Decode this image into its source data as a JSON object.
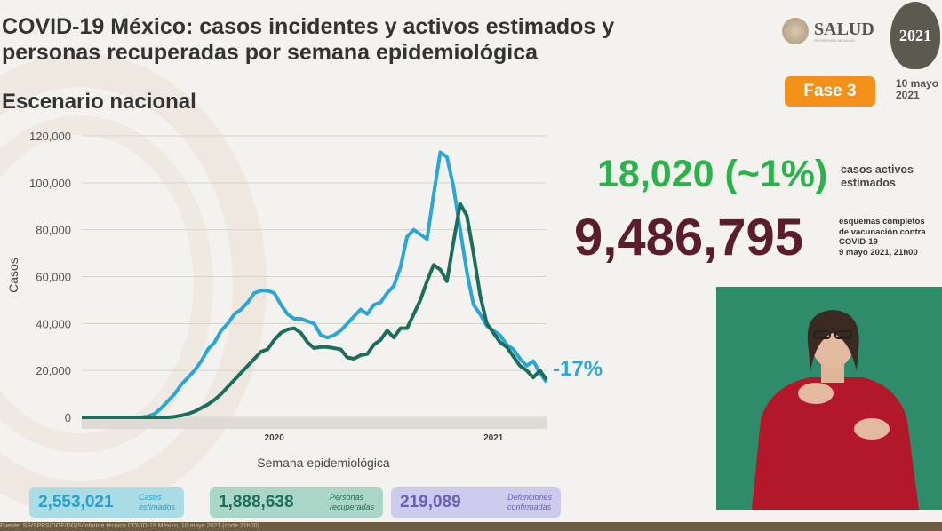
{
  "header": {
    "title_line1": "COVID-19 México: casos incidentes y activos estimados y",
    "title_line2": "personas recuperadas por semana epidemiológica",
    "subtitle": "Escenario nacional",
    "logo_salud": "SALUD",
    "logo_salud_sub": "SECRETARÍA DE SALUD",
    "seal_text": "2021",
    "phase_badge": "Fase 3",
    "date_line1": "10 mayo",
    "date_line2": "2021"
  },
  "kpis": {
    "active_value": "18,020 (~1%)",
    "active_label_1": "casos activos",
    "active_label_2": "estimados",
    "vaccine_value": "9,486,795",
    "vaccine_label_1": "esquemas completos",
    "vaccine_label_2": "de vacunación contra",
    "vaccine_label_3": "COVID-19",
    "vaccine_label_4": "9 mayo 2021, 21h00"
  },
  "stats": [
    {
      "value": "2,553,021",
      "label_1": "Casos",
      "label_2": "estimados",
      "color": "#2aa0c8",
      "bg": "#a9dce4"
    },
    {
      "value": "1,888,638",
      "label_1": "Personas",
      "label_2": "recuperadas",
      "color": "#1f6e5a",
      "bg": "#a9d6c6"
    },
    {
      "value": "219,089",
      "label_1": "Defunciones",
      "label_2": "confirmadas",
      "color": "#6a5fb5",
      "bg": "#cccbee"
    }
  ],
  "footer": "Fuente: SS/SPPS/DGE/DGIS/Informe técnico COVID-19 México, 10 mayo 2021 (corte 21h00)",
  "chart_data": {
    "type": "line",
    "title": "",
    "xlabel": "Semana epidemiológica",
    "ylabel": "Casos",
    "ylim": [
      0,
      120000
    ],
    "yticks": [
      "0",
      "20,000",
      "40,000",
      "60,000",
      "80,000",
      "100,000",
      "120,000"
    ],
    "ytick_values": [
      0,
      20000,
      40000,
      60000,
      80000,
      100000,
      120000
    ],
    "xtick_labels": [
      {
        "label": "2020",
        "week_index": 29
      },
      {
        "label": "2021",
        "week_index": 62
      }
    ],
    "grid": true,
    "annotation": "-17%",
    "series": [
      {
        "name": "Casos estimados",
        "color": "#2aa6d6",
        "values": [
          0,
          0,
          0,
          0,
          0,
          0,
          0,
          0,
          0,
          0,
          500,
          1500,
          4000,
          7000,
          10000,
          14000,
          17000,
          20000,
          24000,
          29000,
          32000,
          37000,
          40000,
          44000,
          46000,
          49000,
          53000,
          54000,
          54000,
          53000,
          48000,
          44000,
          42000,
          42000,
          41000,
          40000,
          35000,
          34000,
          35000,
          37000,
          40000,
          43000,
          46000,
          44000,
          48000,
          49000,
          53000,
          56000,
          64000,
          77000,
          80000,
          78000,
          76000,
          95000,
          113000,
          111000,
          98000,
          80000,
          62000,
          48000,
          44000,
          39000,
          37000,
          35000,
          31000,
          29000,
          25000,
          22000,
          24000,
          19000,
          15000
        ]
      },
      {
        "name": "Personas recuperadas",
        "color": "#1b6e5c",
        "values": [
          0,
          0,
          0,
          0,
          0,
          0,
          0,
          0,
          0,
          0,
          0,
          0,
          0,
          0,
          300,
          800,
          1500,
          2500,
          4000,
          5500,
          7500,
          10000,
          13000,
          16000,
          19000,
          22000,
          25000,
          28000,
          29000,
          33000,
          36000,
          37500,
          38000,
          36000,
          32000,
          29500,
          30000,
          30000,
          29500,
          29000,
          25500,
          25000,
          26500,
          27000,
          31000,
          33000,
          37000,
          34000,
          38000,
          38000,
          44000,
          50000,
          58000,
          65000,
          63000,
          58000,
          75000,
          91000,
          86000,
          70000,
          52000,
          40000,
          36000,
          32000,
          30000,
          26000,
          22000,
          20000,
          17000,
          20000,
          16000
        ]
      }
    ]
  }
}
